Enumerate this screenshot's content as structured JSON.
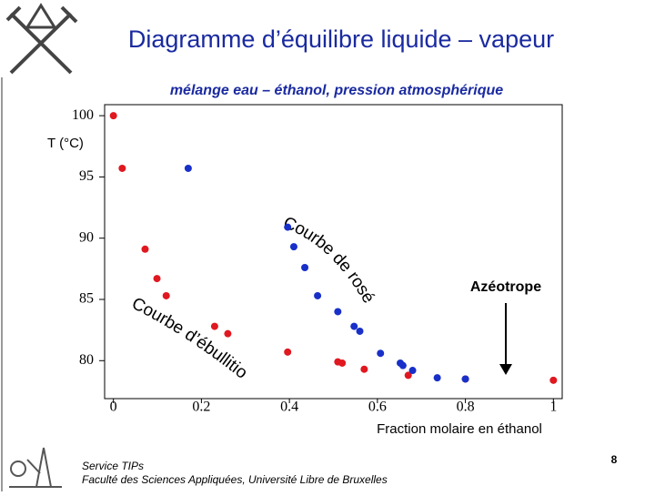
{
  "header": {
    "title": "Diagramme d’équilibre liquide – vapeur"
  },
  "chart_data": {
    "type": "scatter",
    "title": "mélange eau – éthanol, pression atmosphérique",
    "y_label": "T (°C)",
    "x_label": "Fraction molaire en éthanol",
    "xlim": [
      -0.02,
      1.02
    ],
    "xticks": [
      0,
      0.2,
      0.4,
      0.6,
      0.8,
      1
    ],
    "ylim": [
      76.9,
      100.9
    ],
    "yticks": [
      80,
      85,
      90,
      95,
      100
    ],
    "series": [
      {
        "color": "#e01820",
        "x": [
          0,
          0.02,
          0.072,
          0.099,
          0.12,
          0.23,
          0.26,
          0.396,
          0.51,
          0.52,
          0.57,
          0.67,
          0.8,
          1.0
        ],
        "values": [
          100,
          95.7,
          89.1,
          86.7,
          85.3,
          82.8,
          82.2,
          80.7,
          79.9,
          79.8,
          79.3,
          78.8,
          78.5,
          78.4
        ]
      },
      {
        "color": "#1830c8",
        "x": [
          0.17,
          0.396,
          0.41,
          0.435,
          0.464,
          0.51,
          0.547,
          0.56,
          0.607,
          0.652,
          0.658,
          0.68,
          0.736,
          0.8
        ],
        "values": [
          95.7,
          90.9,
          89.3,
          87.6,
          85.3,
          84.0,
          82.8,
          82.4,
          80.6,
          79.8,
          79.6,
          79.2,
          78.6,
          78.5
        ]
      }
    ],
    "annotations": [
      "Courbe de rosée",
      "Courbe d’ébullition",
      "Azéotrope"
    ]
  },
  "footer": {
    "lines": [
      "Service TIPs",
      "Faculté des Sciences Appliquées, Université Libre de Bruxelles"
    ],
    "page": "8"
  }
}
